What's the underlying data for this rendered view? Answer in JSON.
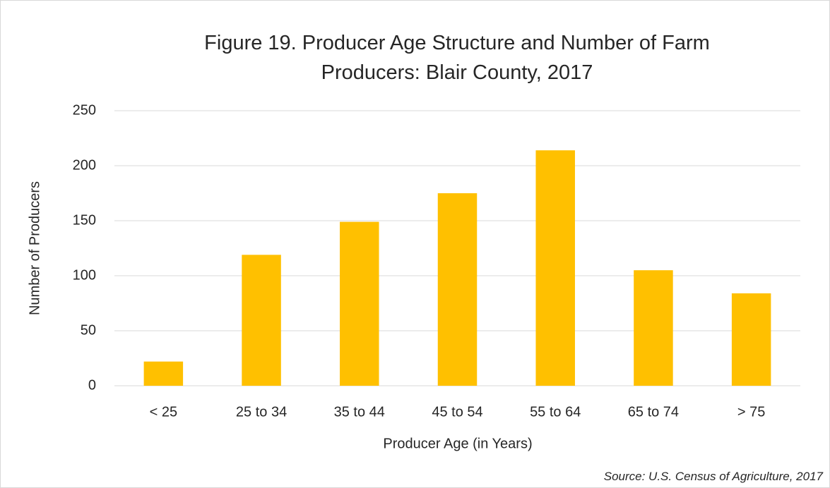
{
  "chart_data": {
    "type": "bar",
    "title": "Figure 19. Producer Age Structure and Number of Farm Producers: Blair County, 2017",
    "x_label": "Producer Age (in Years)",
    "y_label": "Number of Producers",
    "source": "Source: U.S. Census of Agriculture, 2017",
    "categories": [
      "< 25",
      "25 to 34",
      "35 to 44",
      "45 to 54",
      "55 to 64",
      "65 to 74",
      "> 75"
    ],
    "values": [
      22,
      119,
      149,
      175,
      214,
      105,
      84
    ],
    "color": "#ffc000",
    "ylim": [
      0,
      250
    ],
    "yticks": [
      0,
      50,
      100,
      150,
      200,
      250
    ],
    "grid": true
  }
}
